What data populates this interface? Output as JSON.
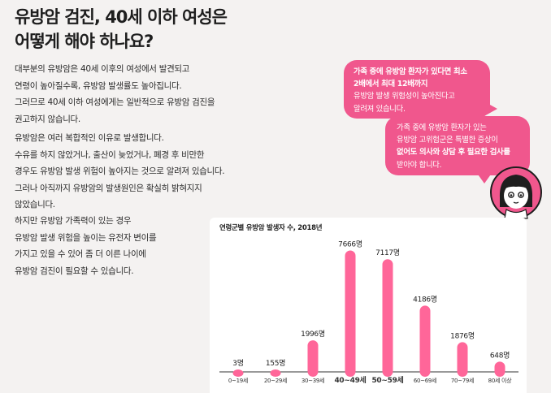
{
  "heading": {
    "line1": "유방암 검진, 40세 이하 여성은",
    "line2": "어떻게 해야 하나요?"
  },
  "paragraphs": [
    {
      "lines": [
        "대부분의 유방암은 40세 이후의 여성에서 발견되고",
        "연령이 높아질수록, 유방암 발생률도 높아집니다.",
        "그러므로 40세 이하 여성에게는 일반적으로 유방암 검진을",
        "권고하지 않습니다."
      ]
    },
    {
      "lines": [
        "유방암은 여러 복합적인 이유로 발생합니다.",
        "수유를 하지 않았거나, 출산이 늦었거나, 폐경 후 비만한",
        "경우도 유방암 발생 위험이 높아지는 것으로 알려져 있습니다.",
        "그러나 아직까지 유방암의 발생원인은 확실히 밝혀지지",
        "않았습니다."
      ]
    },
    {
      "lines": [
        "하지만 유방암 가족력이 있는 경우",
        "유방암 발생 위험을 높이는 유전자 변이를",
        "가지고 있을 수 있어 좀 더 이른 나이에",
        "유방암 검진이 필요할 수 있습니다."
      ]
    }
  ],
  "bubbles": [
    {
      "lines": [
        "가족 중에 유방암 환자가 있다면 최소",
        "2배에서 최대 12배까지",
        "유방암 발생 위험성이 높아진다고",
        "알려져 있습니다."
      ]
    },
    {
      "lines": [
        "가족 중에 유방암 환자가 있는",
        "유방암 고위험군은 특별한 증상이",
        "없어도 의사와 상담 후 필요한 검사를",
        "받아야 합니다."
      ]
    }
  ],
  "colors": {
    "accent": "#f0578d",
    "bar": "#ff6699",
    "axis": "#333333"
  },
  "chart_data": {
    "type": "bar",
    "title": "연령군별 유방암 발생자 수, 2018년",
    "categories": [
      "0~19세",
      "20~29세",
      "30~39세",
      "40~49세",
      "50~59세",
      "60~69세",
      "70~79세",
      "80세 이상"
    ],
    "values": [
      3,
      155,
      1996,
      7666,
      7117,
      4186,
      1876,
      648
    ],
    "data_labels": [
      "3명",
      "155명",
      "1996명",
      "7666명",
      "7117명",
      "4186명",
      "1876명",
      "648명"
    ],
    "bold_categories": [
      "40~49세",
      "50~59세"
    ],
    "ylim": [
      0,
      8000
    ],
    "grid": false,
    "xlabel": "",
    "ylabel": ""
  }
}
